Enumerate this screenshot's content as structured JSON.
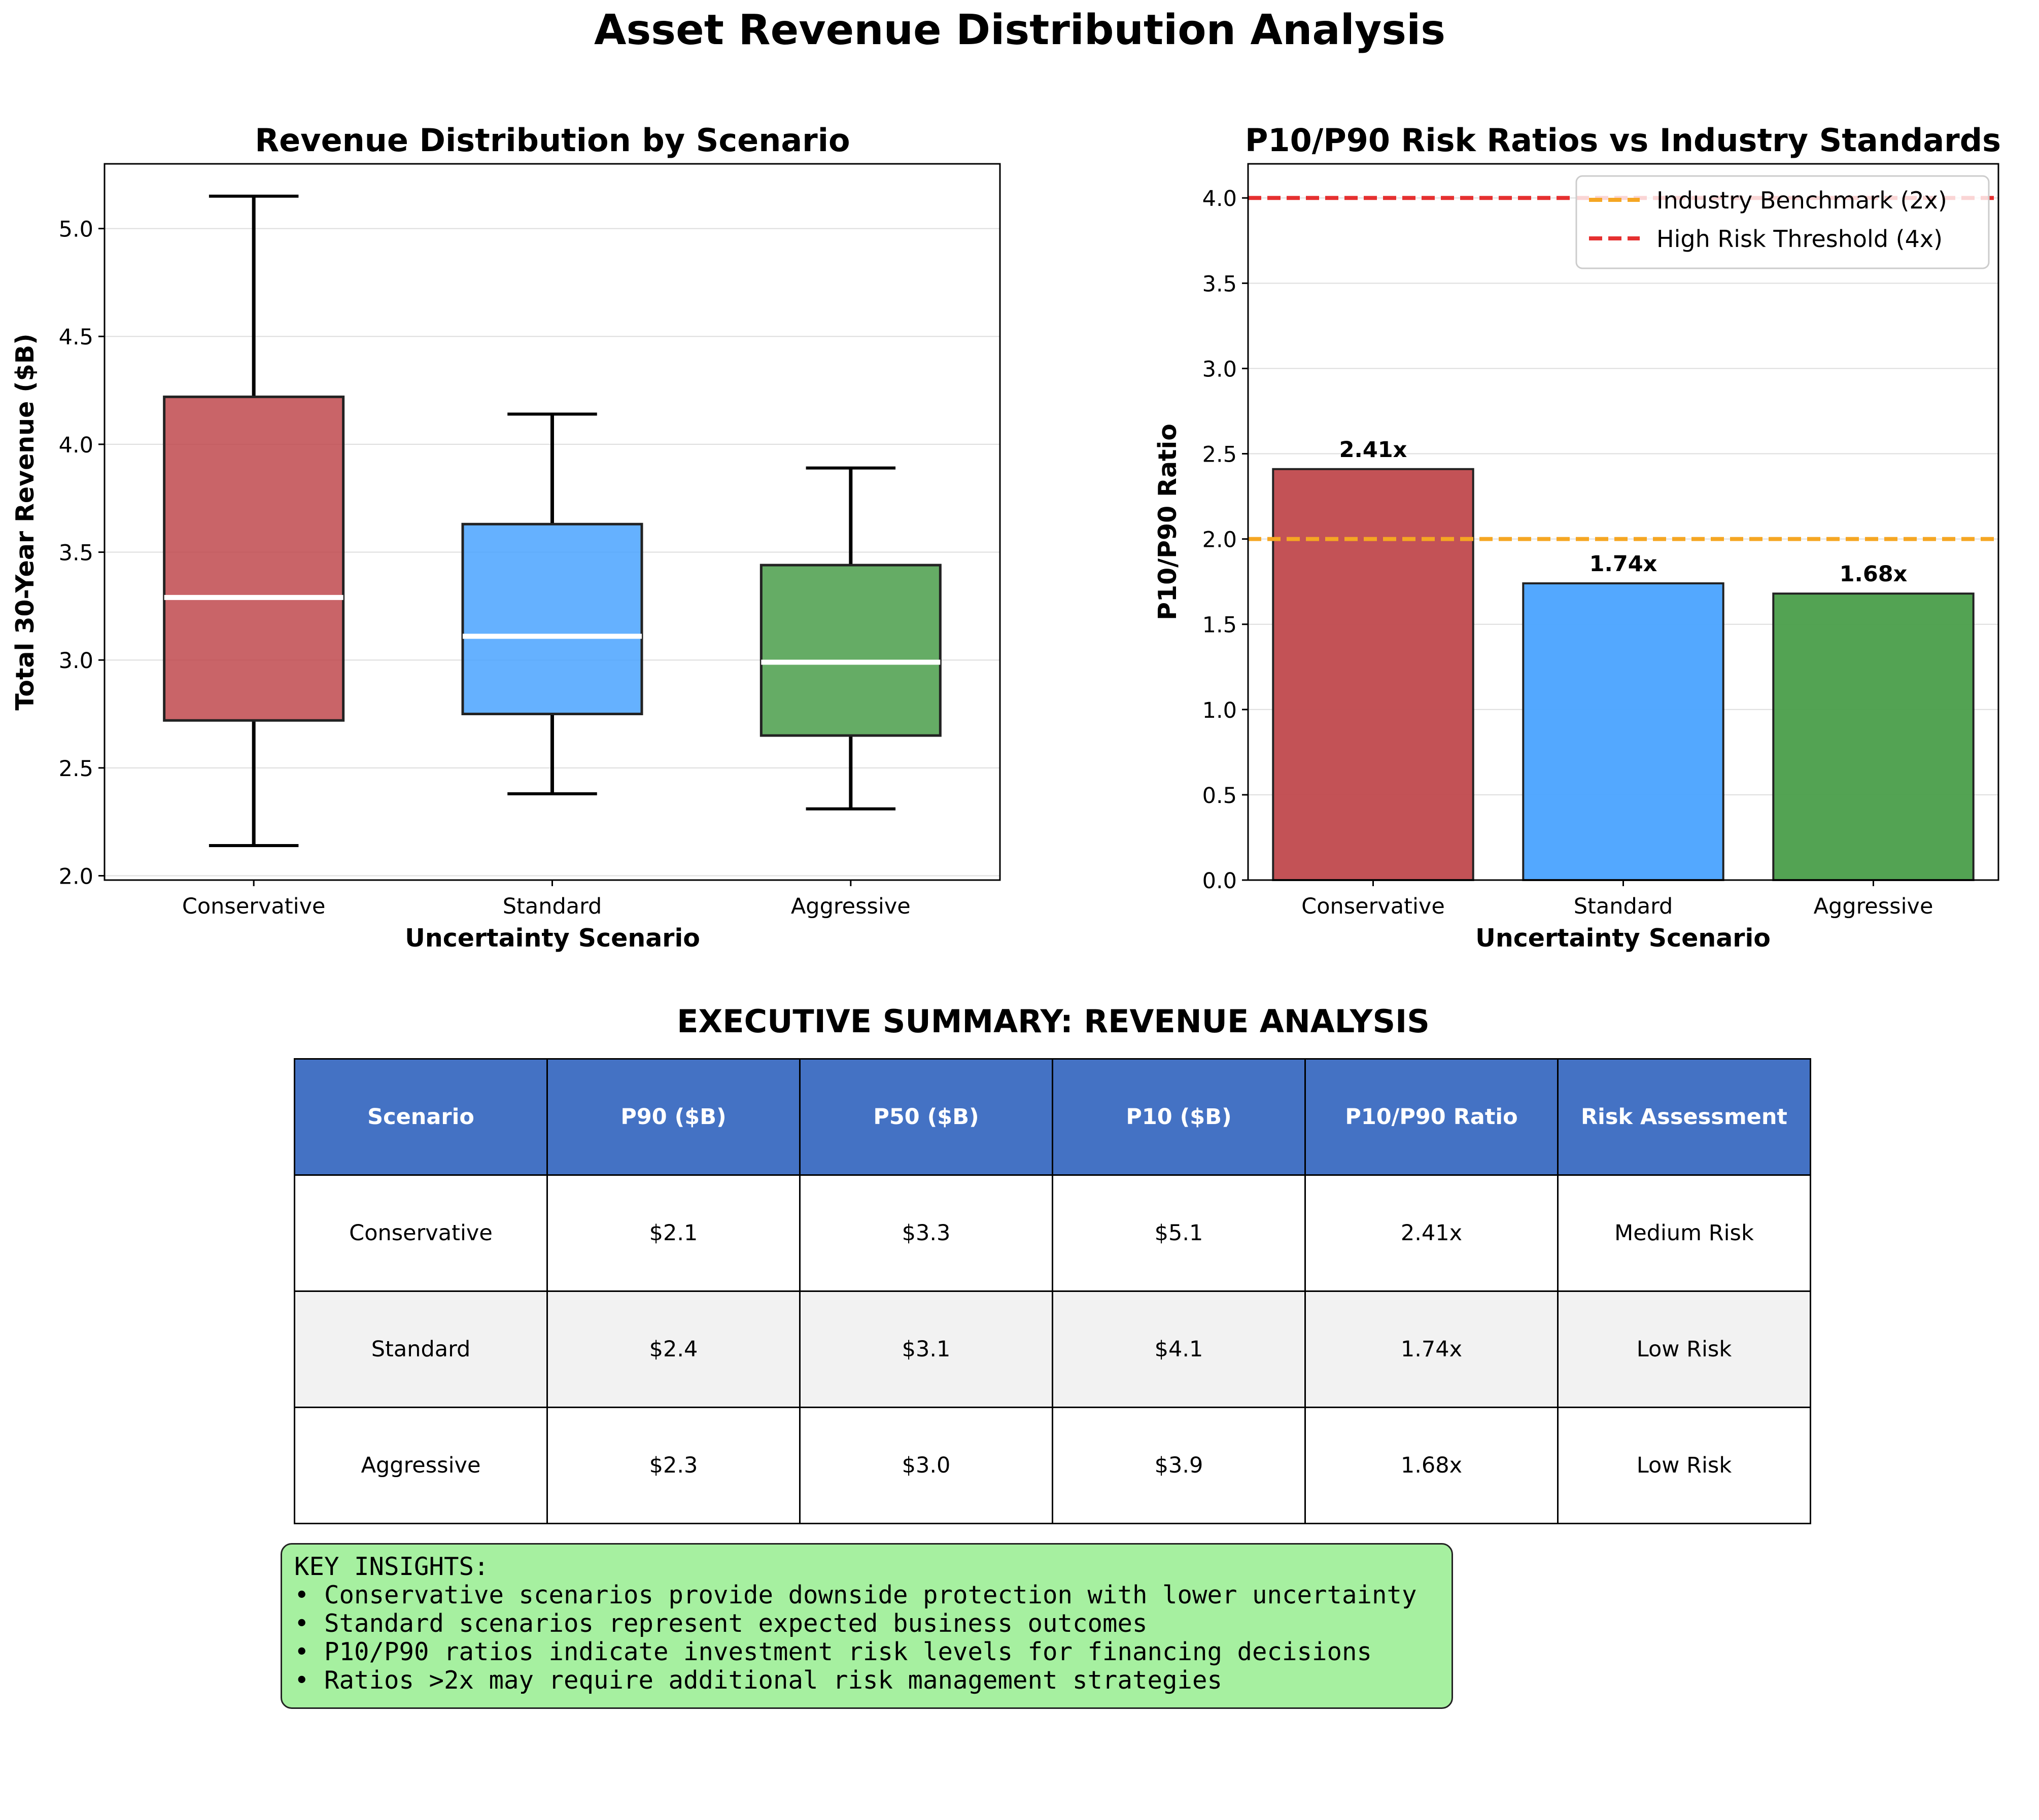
{
  "title": "Asset Revenue Distribution Analysis",
  "chart_data": [
    {
      "type": "box",
      "title": "Revenue Distribution by Scenario",
      "xlabel": "Uncertainty Scenario",
      "ylabel": "Total 30-Year Revenue ($B)",
      "ylim": [
        1.98,
        5.3
      ],
      "yticks": [
        2.0,
        2.5,
        3.0,
        3.5,
        4.0,
        4.5,
        5.0
      ],
      "grid": "y",
      "categories": [
        "Conservative",
        "Standard",
        "Aggressive"
      ],
      "boxes": [
        {
          "name": "Conservative",
          "whisker_low": 2.14,
          "q1": 2.72,
          "median": 3.29,
          "q3": 4.22,
          "whisker_high": 5.15,
          "color": "#c0494d"
        },
        {
          "name": "Standard",
          "whisker_low": 2.38,
          "q1": 2.75,
          "median": 3.11,
          "q3": 3.63,
          "whisker_high": 4.14,
          "color": "#4aa3ff"
        },
        {
          "name": "Aggressive",
          "whisker_low": 2.31,
          "q1": 2.65,
          "median": 2.99,
          "q3": 3.44,
          "whisker_high": 3.89,
          "color": "#4a9e4a"
        }
      ]
    },
    {
      "type": "bar",
      "title": "P10/P90 Risk Ratios vs Industry Standards",
      "xlabel": "Uncertainty Scenario",
      "ylabel": "P10/P90 Ratio",
      "ylim": [
        0,
        4.2
      ],
      "yticks": [
        0.0,
        0.5,
        1.0,
        1.5,
        2.0,
        2.5,
        3.0,
        3.5,
        4.0
      ],
      "grid": "y",
      "categories": [
        "Conservative",
        "Standard",
        "Aggressive"
      ],
      "values": [
        2.41,
        1.74,
        1.68
      ],
      "data_labels": [
        "2.41x",
        "1.74x",
        "1.68x"
      ],
      "colors": [
        "#c0494d",
        "#4aa3ff",
        "#4a9e4a"
      ],
      "reference_lines": [
        {
          "name": "Industry Benchmark (2x)",
          "y": 2.0,
          "color": "#f5a623",
          "style": "dashed"
        },
        {
          "name": "High Risk Threshold (4x)",
          "y": 4.0,
          "color": "#e53030",
          "style": "dashed"
        }
      ],
      "legend_position": "upper right"
    }
  ],
  "table": {
    "title": "EXECUTIVE SUMMARY: REVENUE ANALYSIS",
    "headers": [
      "Scenario",
      "P90 ($B)",
      "P50 ($B)",
      "P10 ($B)",
      "P10/P90 Ratio",
      "Risk Assessment"
    ],
    "rows": [
      [
        "Conservative",
        "$2.1",
        "$3.3",
        "$5.1",
        "2.41x",
        "Medium Risk"
      ],
      [
        "Standard",
        "$2.4",
        "$3.1",
        "$4.1",
        "1.74x",
        "Low Risk"
      ],
      [
        "Aggressive",
        "$2.3",
        "$3.0",
        "$3.9",
        "1.68x",
        "Low Risk"
      ]
    ],
    "header_color": "#4472c4",
    "alt_row_color": "#f2f2f2"
  },
  "insights": {
    "heading": "KEY INSIGHTS:",
    "items": [
      "• Conservative scenarios provide downside protection with lower uncertainty",
      "• Standard scenarios represent expected business outcomes",
      "• P10/P90 ratios indicate investment risk levels for financing decisions",
      "• Ratios >2x may require additional risk management strategies"
    ],
    "background": "#a6f0a0"
  }
}
